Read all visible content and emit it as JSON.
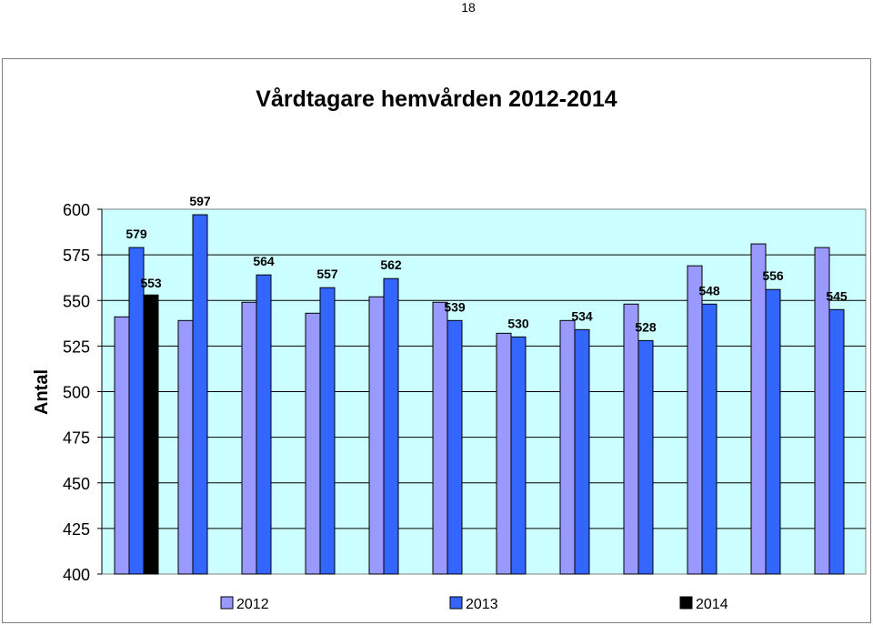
{
  "page": {
    "number": "18"
  },
  "chart_data": {
    "type": "bar",
    "title": "Vårdtagare hemvården 2012-2014",
    "xlabel": "",
    "ylabel": "Antal",
    "ylim": [
      400,
      600
    ],
    "yticks": [
      "400",
      "425",
      "450",
      "475",
      "500",
      "525",
      "550",
      "575",
      "600"
    ],
    "grid": true,
    "legend_position": "bottom",
    "categories": [
      "",
      "",
      "",
      "",
      "",
      "",
      "",
      "",
      "",
      "",
      "",
      ""
    ],
    "series": [
      {
        "name": "2012",
        "color": "#9999ff",
        "values": [
          541,
          539,
          549,
          543,
          552,
          549,
          532,
          539,
          548,
          569,
          581,
          579
        ],
        "labels": [
          "",
          "",
          "",
          "",
          "",
          "",
          "",
          "",
          "",
          "",
          "",
          ""
        ]
      },
      {
        "name": "2013",
        "color": "#3366ff",
        "values": [
          579,
          597,
          564,
          557,
          562,
          539,
          530,
          534,
          528,
          548,
          556,
          545
        ],
        "labels": [
          "579",
          "597",
          "564",
          "557",
          "562",
          "539",
          "530",
          "534",
          "528",
          "548",
          "556",
          "545"
        ]
      },
      {
        "name": "2014",
        "color": "#000000",
        "values": [
          553,
          null,
          null,
          null,
          null,
          null,
          null,
          null,
          null,
          null,
          null,
          null
        ],
        "labels": [
          "553",
          "",
          "",
          "",
          "",
          "",
          "",
          "",
          "",
          "",
          "",
          ""
        ]
      }
    ],
    "plot_background": "#ccffff"
  }
}
